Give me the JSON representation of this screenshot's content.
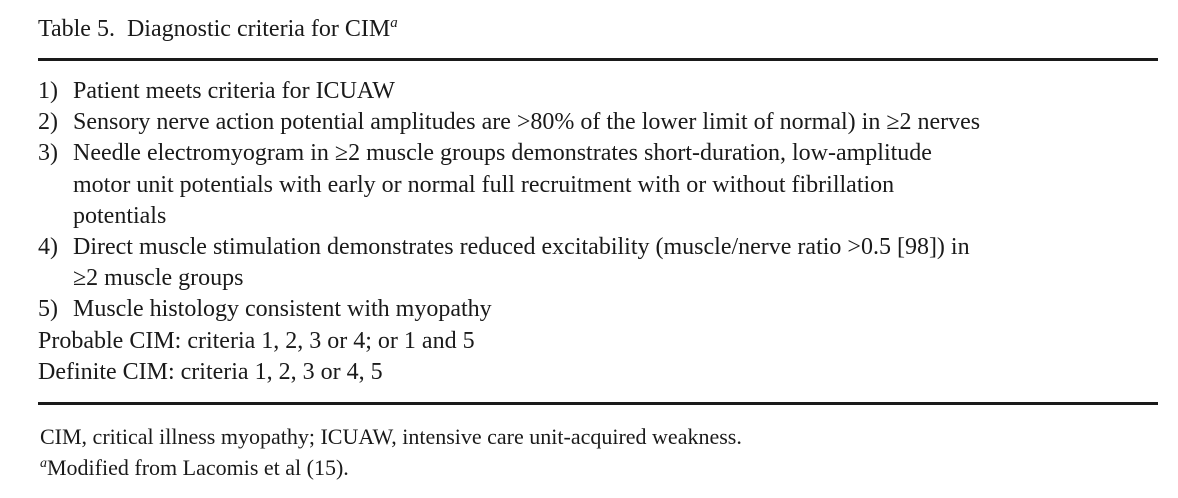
{
  "table": {
    "label": "Table 5.",
    "title": "Diagnostic criteria for CIM",
    "title_marker": "a",
    "criteria": [
      {
        "num": "1)",
        "lines": [
          "Patient meets criteria for ICUAW"
        ]
      },
      {
        "num": "2)",
        "lines": [
          "Sensory nerve action potential amplitudes are >80% of the lower limit of normal) in ≥2 nerves"
        ]
      },
      {
        "num": "3)",
        "lines": [
          "Needle electromyogram in ≥2 muscle groups demonstrates short-duration, low-amplitude",
          "motor unit potentials with early or normal full recruitment with or without fibrillation",
          "potentials"
        ]
      },
      {
        "num": "4)",
        "lines": [
          "Direct muscle stimulation demonstrates reduced excitability (muscle/nerve ratio >0.5 [98]) in",
          "≥2 muscle groups"
        ]
      },
      {
        "num": "5)",
        "lines": [
          "Muscle histology consistent with myopathy"
        ]
      }
    ],
    "probable": "Probable CIM: criteria 1, 2, 3 or 4; or 1 and 5",
    "definite": "Definite CIM: criteria 1, 2, 3 or 4, 5"
  },
  "footnotes": {
    "abbreviations": "CIM, critical illness myopathy; ICUAW, intensive care unit-acquired weakness.",
    "marker": "a",
    "source": "Modified from Lacomis et al (15)."
  }
}
